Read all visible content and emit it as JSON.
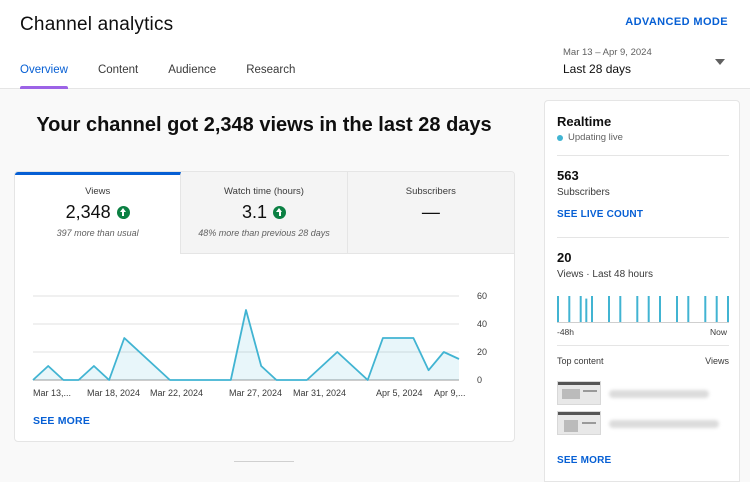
{
  "header": {
    "title": "Channel analytics",
    "advanced_mode": "ADVANCED MODE",
    "tabs": [
      {
        "label": "Overview",
        "active": true
      },
      {
        "label": "Content",
        "active": false
      },
      {
        "label": "Audience",
        "active": false
      },
      {
        "label": "Research",
        "active": false
      }
    ],
    "date_range": {
      "sub": "Mar 13 – Apr 9, 2024",
      "main": "Last 28 days"
    }
  },
  "headline": "Your channel got 2,348 views in the last 28 days",
  "metrics": [
    {
      "label": "Views",
      "value": "2,348",
      "trend": "up",
      "note": "397 more than usual"
    },
    {
      "label": "Watch time (hours)",
      "value": "3.1",
      "trend": "up",
      "note": "48% more than previous 28 days"
    },
    {
      "label": "Subscribers",
      "value": "—",
      "trend": "",
      "note": ""
    }
  ],
  "see_more": "SEE MORE",
  "chart_data": {
    "type": "area",
    "x_tick_labels": [
      "Mar 13,...",
      "Mar 18, 2024",
      "Mar 22, 2024",
      "Mar 27, 2024",
      "Mar 31, 2024",
      "Apr 5, 2024",
      "Apr 9,..."
    ],
    "y_tick_labels": [
      "60",
      "40",
      "20",
      "0"
    ],
    "ylim": [
      0,
      60
    ],
    "color": "#41b4d2",
    "values": [
      0,
      10,
      0,
      0,
      10,
      0,
      30,
      20,
      10,
      0,
      0,
      0,
      0,
      0,
      50,
      10,
      0,
      0,
      0,
      10,
      20,
      10,
      0,
      30,
      30,
      30,
      7,
      20,
      15
    ]
  },
  "realtime": {
    "title": "Realtime",
    "status": "Updating live",
    "subscribers": {
      "value": "563",
      "label": "Subscribers",
      "link": "SEE LIVE COUNT"
    },
    "views": {
      "value": "20",
      "label": "Views · Last 48 hours"
    },
    "bars_chart": {
      "type": "bar",
      "x_start": "-48h",
      "x_end": "Now",
      "values": [
        1,
        0,
        1,
        0,
        1,
        0.9,
        1,
        0,
        0,
        1,
        0,
        1,
        0,
        0,
        1,
        0,
        1,
        0,
        1,
        0,
        0,
        1,
        0,
        1,
        0,
        0,
        1,
        0,
        1,
        0,
        1
      ]
    },
    "top_content": {
      "label": "Top content",
      "metric": "Views"
    },
    "see_more": "SEE MORE"
  }
}
